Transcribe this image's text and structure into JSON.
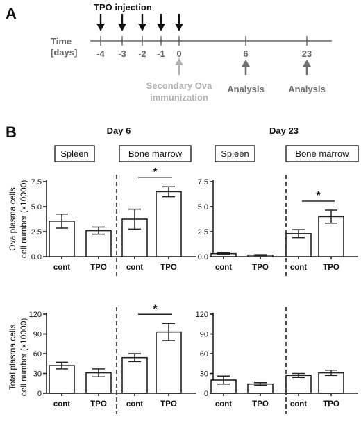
{
  "panel_a": {
    "label": "A",
    "injection_label": "TPO injection",
    "axis_label_1": "Time",
    "axis_label_2": "[days]",
    "ticks": [
      "-4",
      "-3",
      "-2",
      "-1",
      "0",
      "6",
      "23"
    ],
    "secondary_line1": "Secondary Ova",
    "secondary_line2": "immunization",
    "analysis_label": "Analysis",
    "colors": {
      "injection_arrow": "#111111",
      "secondary_arrow": "#b0b0b0",
      "analysis_arrow": "#707070"
    }
  },
  "panel_b": {
    "label": "B",
    "day6": "Day 6",
    "day23": "Day 23",
    "spleen": "Spleen",
    "bone_marrow": "Bone marrow",
    "star": "*"
  },
  "chart_data": [
    {
      "type": "bar",
      "title": "Day 6",
      "ylabel": "Ova plasma cells cell number (x10000)",
      "ylim": [
        0,
        7.5
      ],
      "yticks": [
        "0.0",
        "2.5",
        "5.0",
        "7.5"
      ],
      "categories": [
        "cont",
        "TPO",
        "cont",
        "TPO"
      ],
      "groups": [
        "Spleen",
        "Spleen",
        "Bone marrow",
        "Bone marrow"
      ],
      "values": [
        3.55,
        2.6,
        3.75,
        6.5
      ],
      "errors": [
        0.7,
        0.35,
        1.0,
        0.5
      ],
      "significance": [
        {
          "between": [
            2,
            3
          ],
          "label": "*"
        }
      ]
    },
    {
      "type": "bar",
      "title": "Day 23",
      "ylabel": "",
      "ylim": [
        0,
        7.5
      ],
      "yticks": [
        "0.0",
        "2.5",
        "5.0",
        "7.5"
      ],
      "categories": [
        "cont",
        "TPO",
        "cont",
        "TPO"
      ],
      "groups": [
        "Spleen",
        "Spleen",
        "Bone marrow",
        "Bone marrow"
      ],
      "values": [
        0.3,
        0.15,
        2.3,
        4.0
      ],
      "errors": [
        0.1,
        0.05,
        0.4,
        0.65
      ],
      "significance": [
        {
          "between": [
            2,
            3
          ],
          "label": "*"
        }
      ]
    },
    {
      "type": "bar",
      "title": "",
      "ylabel": "Total plasma cells cell number (x10000)",
      "ylim": [
        0,
        120
      ],
      "yticks": [
        "0",
        "30",
        "60",
        "90",
        "120"
      ],
      "categories": [
        "cont",
        "TPO",
        "cont",
        "TPO"
      ],
      "groups": [
        "Spleen",
        "Spleen",
        "Bone marrow",
        "Bone marrow"
      ],
      "values": [
        42,
        31,
        54,
        93
      ],
      "errors": [
        5,
        6,
        6,
        13
      ],
      "significance": [
        {
          "between": [
            2,
            3
          ],
          "label": "*"
        }
      ]
    },
    {
      "type": "bar",
      "title": "",
      "ylabel": "",
      "ylim": [
        0,
        120
      ],
      "yticks": [
        "0",
        "30",
        "60",
        "90",
        "120"
      ],
      "categories": [
        "cont",
        "TPO",
        "cont",
        "TPO"
      ],
      "groups": [
        "Spleen",
        "Spleen",
        "Bone marrow",
        "Bone marrow"
      ],
      "values": [
        20,
        14,
        27,
        31
      ],
      "errors": [
        6,
        2,
        3,
        4
      ],
      "significance": []
    }
  ]
}
